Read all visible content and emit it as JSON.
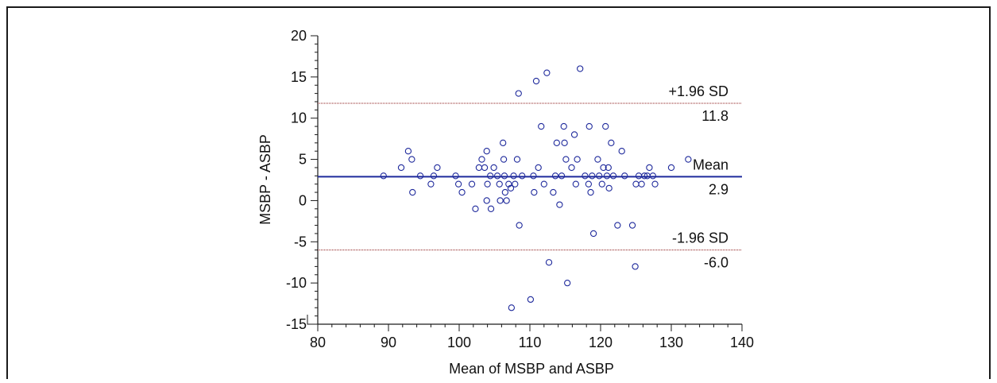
{
  "chart_data": {
    "type": "scatter",
    "title": "",
    "xlabel": "Mean of MSBP and ASBP",
    "ylabel": "MSBP - ASBP",
    "xlim": [
      80,
      140
    ],
    "ylim": [
      -15,
      20
    ],
    "x_ticks": [
      "80",
      "90",
      "100",
      "110",
      "120",
      "130",
      "140"
    ],
    "y_ticks": [
      "20",
      "15",
      "10",
      "5",
      "0",
      "-5",
      "-10",
      "-15"
    ],
    "grid": false,
    "legend": "none",
    "reference_lines": [
      {
        "label": "+1.96 SD",
        "value_label": "11.8",
        "value": 11.8,
        "color": "#8b1a1a",
        "style": "dotted"
      },
      {
        "label": "Mean",
        "value_label": "2.9",
        "value": 2.9,
        "color": "#1f2a9c",
        "style": "solid"
      },
      {
        "label": "-1.96 SD",
        "value_label": "-6.0",
        "value": -6.0,
        "color": "#8b1a1a",
        "style": "dotted"
      }
    ],
    "point_color": "#1f2a9c",
    "points": [
      [
        89.3,
        3
      ],
      [
        91.8,
        4
      ],
      [
        92.8,
        6
      ],
      [
        93.3,
        5
      ],
      [
        93.4,
        1
      ],
      [
        94.5,
        3
      ],
      [
        96.0,
        2
      ],
      [
        96.4,
        3
      ],
      [
        96.9,
        4
      ],
      [
        99.5,
        3
      ],
      [
        99.9,
        2
      ],
      [
        100.4,
        1
      ],
      [
        101.8,
        2
      ],
      [
        102.3,
        -1
      ],
      [
        102.8,
        4
      ],
      [
        103.2,
        5
      ],
      [
        103.6,
        4
      ],
      [
        103.9,
        6
      ],
      [
        103.9,
        0
      ],
      [
        104.0,
        2
      ],
      [
        104.4,
        3
      ],
      [
        104.5,
        -1
      ],
      [
        104.9,
        4
      ],
      [
        105.4,
        3
      ],
      [
        105.7,
        2
      ],
      [
        105.8,
        0
      ],
      [
        106.2,
        7
      ],
      [
        106.3,
        5
      ],
      [
        106.4,
        3
      ],
      [
        106.5,
        1
      ],
      [
        106.7,
        0
      ],
      [
        107.0,
        2
      ],
      [
        107.3,
        1.5
      ],
      [
        107.4,
        -13
      ],
      [
        107.7,
        3
      ],
      [
        107.9,
        2
      ],
      [
        108.2,
        5
      ],
      [
        108.4,
        13
      ],
      [
        108.5,
        -3
      ],
      [
        108.9,
        3
      ],
      [
        110.1,
        -12
      ],
      [
        110.5,
        3
      ],
      [
        110.6,
        1
      ],
      [
        110.9,
        14.5
      ],
      [
        111.2,
        4
      ],
      [
        111.6,
        9
      ],
      [
        112.0,
        2
      ],
      [
        112.4,
        15.5
      ],
      [
        112.7,
        -7.5
      ],
      [
        113.3,
        1
      ],
      [
        113.6,
        3
      ],
      [
        113.8,
        7
      ],
      [
        114.2,
        -0.5
      ],
      [
        114.5,
        3
      ],
      [
        114.8,
        9
      ],
      [
        114.9,
        7
      ],
      [
        115.1,
        5
      ],
      [
        115.3,
        -10
      ],
      [
        115.9,
        4
      ],
      [
        116.3,
        8
      ],
      [
        116.5,
        2
      ],
      [
        116.7,
        5
      ],
      [
        117.1,
        16
      ],
      [
        117.8,
        3
      ],
      [
        118.3,
        2
      ],
      [
        118.4,
        9
      ],
      [
        118.6,
        1
      ],
      [
        118.8,
        3
      ],
      [
        119.0,
        -4
      ],
      [
        119.6,
        5
      ],
      [
        119.8,
        3
      ],
      [
        120.2,
        2
      ],
      [
        120.4,
        4
      ],
      [
        120.7,
        9
      ],
      [
        120.9,
        3
      ],
      [
        121.1,
        4
      ],
      [
        121.2,
        1.5
      ],
      [
        121.5,
        7
      ],
      [
        121.8,
        3
      ],
      [
        122.4,
        -3
      ],
      [
        123.0,
        6
      ],
      [
        123.4,
        3
      ],
      [
        124.5,
        -3
      ],
      [
        124.9,
        -8
      ],
      [
        125.0,
        2
      ],
      [
        125.4,
        3
      ],
      [
        125.8,
        2
      ],
      [
        126.2,
        3
      ],
      [
        126.6,
        3
      ],
      [
        126.9,
        4
      ],
      [
        127.4,
        3
      ],
      [
        127.7,
        2
      ],
      [
        130.0,
        4
      ],
      [
        132.4,
        5
      ]
    ]
  }
}
